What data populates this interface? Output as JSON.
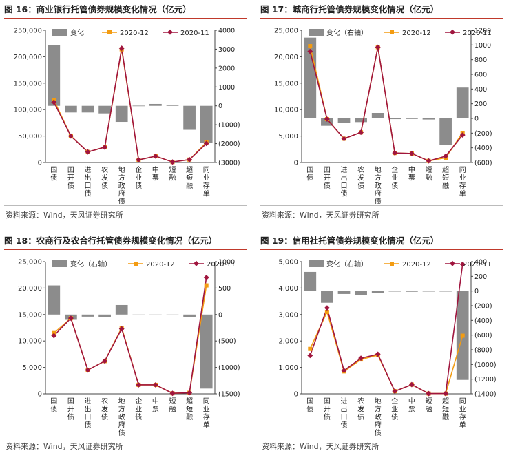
{
  "legend": {
    "change": "变化",
    "change_right": "变化（右轴）",
    "dec": "2020-12",
    "nov": "2020-11"
  },
  "colors": {
    "bar": "#8c8c8c",
    "dec": "#f39c12",
    "nov": "#a0153e"
  },
  "chart_data": [
    {
      "type": "bar+line",
      "title": "图 16：商业银行托管债券规模变化情况（亿元）",
      "source": "资料来源：Wind，天风证券研究所",
      "legend_label_key": "change",
      "categories": [
        "国债",
        "国开债",
        "进出口债",
        "农发债",
        "地方政府债",
        "企业债",
        "中票",
        "短融",
        "超短融",
        "同业存单"
      ],
      "left_axis": {
        "ylim": [
          0,
          250000
        ],
        "ticks": [
          "0",
          "50,000",
          "100,000",
          "150,000",
          "200,000",
          "250,000"
        ]
      },
      "right_axis": {
        "ylim": [
          -3000,
          4000
        ],
        "ticks": [
          "(3000)",
          "(2000)",
          "(1000)",
          "0",
          "1000",
          "2000",
          "3000",
          "4000"
        ]
      },
      "change": [
        3200,
        -350,
        -350,
        -400,
        -850,
        10,
        100,
        40,
        -1270,
        -1970
      ],
      "dec": [
        118000,
        50000,
        20000,
        29000,
        214000,
        5000,
        12000,
        1000,
        5500,
        38000
      ],
      "nov": [
        114000,
        50000,
        20000,
        29000,
        216000,
        5000,
        12000,
        1000,
        5500,
        36000
      ]
    },
    {
      "type": "bar+line",
      "title": "图 17：城商行托管债券规模变化情况（亿元）",
      "source": "资料来源：Wind，天风证券研究所",
      "legend_label_key": "change_right",
      "categories": [
        "国债",
        "国开债",
        "进出口债",
        "农发债",
        "地方政府债",
        "企业债",
        "中票",
        "短融",
        "超短融",
        "同业存单"
      ],
      "left_axis": {
        "ylim": [
          0,
          25000
        ],
        "ticks": [
          "0",
          "5,000",
          "10,000",
          "15,000",
          "20,000",
          "25,000"
        ]
      },
      "right_axis": {
        "ylim": [
          -600,
          1200
        ],
        "ticks": [
          "(600)",
          "(400)",
          "(200)",
          "0",
          "200",
          "400",
          "600",
          "800",
          "1000",
          "1200"
        ]
      },
      "change": [
        1100,
        -100,
        -60,
        -50,
        75,
        -10,
        -5,
        -15,
        -360,
        420
      ],
      "dec": [
        22000,
        8200,
        4500,
        5700,
        21800,
        1800,
        1700,
        300,
        900,
        5600
      ],
      "nov": [
        21000,
        8200,
        4500,
        5700,
        21800,
        1800,
        1700,
        300,
        1200,
        5200
      ]
    },
    {
      "type": "bar+line",
      "title": "图 18：农商行及农合行托管债券规模变化情况（亿元）",
      "source": "资料来源：Wind，天风证券研究所",
      "legend_label_key": "change_right",
      "categories": [
        "国债",
        "国开债",
        "进出口债",
        "农发债",
        "地方政府债",
        "企业债",
        "中票",
        "短融",
        "超短融",
        "同业存单"
      ],
      "left_axis": {
        "ylim": [
          0,
          25000
        ],
        "ticks": [
          "0",
          "5,000",
          "10,000",
          "15,000",
          "20,000",
          "25,000"
        ]
      },
      "right_axis": {
        "ylim": [
          -1500,
          1000
        ],
        "ticks": [
          "(1500)",
          "(1000)",
          "(500)",
          "0",
          "500",
          "1000"
        ]
      },
      "change": [
        550,
        -100,
        -40,
        -50,
        180,
        -10,
        -5,
        -10,
        -50,
        -1400
      ],
      "dec": [
        11500,
        14300,
        4500,
        6200,
        12500,
        1700,
        1700,
        100,
        200,
        20500
      ],
      "nov": [
        11000,
        14300,
        4500,
        6200,
        12300,
        1700,
        1700,
        100,
        200,
        22000
      ]
    },
    {
      "type": "bar+line",
      "title": "图 19：信用社托管债券规模变化情况（亿元）",
      "source": "资料来源：Wind，天风证券研究所",
      "legend_label_key": "change_right",
      "categories": [
        "国债",
        "国开债",
        "进出口债",
        "农发债",
        "地方政府债",
        "企业债",
        "中票",
        "短融",
        "超短融",
        "同业存单"
      ],
      "left_axis": {
        "ylim": [
          0,
          5000
        ],
        "ticks": [
          "0",
          "1,000",
          "2,000",
          "3,000",
          "4,000",
          "5,000"
        ]
      },
      "right_axis": {
        "ylim": [
          -1400,
          400
        ],
        "ticks": [
          "(1400)",
          "(1200)",
          "(1000)",
          "(800)",
          "(600)",
          "(400)",
          "(200)",
          "0",
          "200",
          "400"
        ]
      },
      "change": [
        260,
        -160,
        -40,
        -50,
        -30,
        -5,
        -10,
        -5,
        -5,
        -1210
      ],
      "dec": [
        1700,
        3100,
        850,
        1300,
        1470,
        100,
        350,
        10,
        10,
        2200
      ],
      "nov": [
        1450,
        3250,
        880,
        1350,
        1500,
        100,
        350,
        10,
        10,
        4900
      ]
    }
  ]
}
